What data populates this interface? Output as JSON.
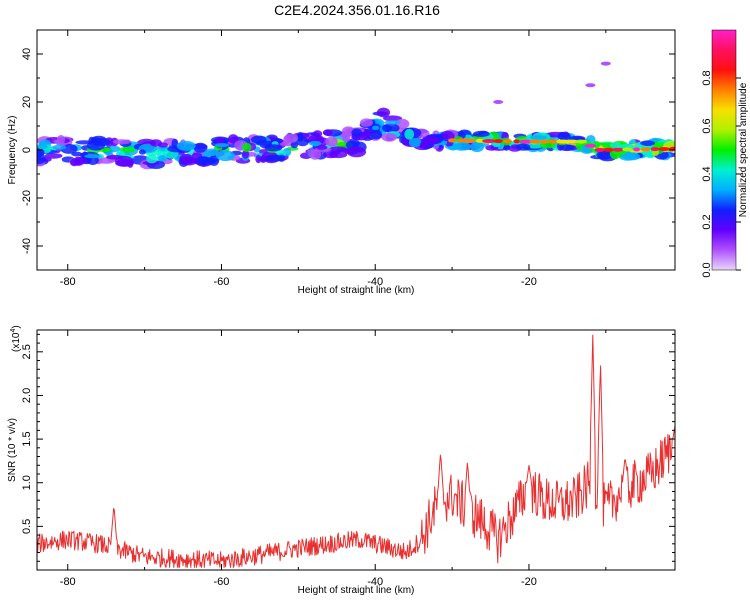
{
  "title": "C2E4.2024.356.01.16.R16",
  "chart_data": [
    {
      "type": "heatmap",
      "xlabel": "Height of straight line (km)",
      "ylabel": "Frequency (Hz)",
      "xlim": [
        -84,
        -1
      ],
      "ylim": [
        -50,
        50
      ],
      "x_ticks": [
        -80,
        -60,
        -40,
        -20
      ],
      "y_ticks": [
        -40,
        -20,
        0,
        20,
        40
      ],
      "colorbar": {
        "label": "Normalized spectral amplitude",
        "range": [
          0,
          1
        ],
        "ticks": [
          "0.0",
          "0.2",
          "0.4",
          "0.6",
          "0.8"
        ],
        "colors": [
          "#e8d8f8",
          "#b050ff",
          "#6000ff",
          "#1020ff",
          "#00b0ff",
          "#00f0d0",
          "#00f000",
          "#b0f000",
          "#f8e000",
          "#ff8000",
          "#ff1010",
          "#ff1060",
          "#ff20c8"
        ]
      },
      "ridge_center_hz": [
        {
          "x": -84,
          "y": -0.8
        },
        {
          "x": -75,
          "y": -0.3
        },
        {
          "x": -68,
          "y": -1.5
        },
        {
          "x": -60,
          "y": -0.5
        },
        {
          "x": -50,
          "y": 1.5
        },
        {
          "x": -42,
          "y": 3.5
        },
        {
          "x": -39.5,
          "y": 12
        },
        {
          "x": -36,
          "y": 5.5
        },
        {
          "x": -30,
          "y": 4
        },
        {
          "x": -20,
          "y": 3.5
        },
        {
          "x": -13,
          "y": 3.5
        },
        {
          "x": -11,
          "y": 0
        },
        {
          "x": -1,
          "y": 0.5
        }
      ]
    },
    {
      "type": "line",
      "xlabel": "Height of straight line (km)",
      "ylabel": "SNR (10 * v/v)",
      "scale_label": "(x10",
      "scale_exponent": "4",
      "xlim": [
        -84,
        -1
      ],
      "ylim": [
        0,
        2.75
      ],
      "x_ticks": [
        -80,
        -60,
        -40,
        -20
      ],
      "y_ticks": [
        "0.5",
        "1.0",
        "1.5",
        "2.0",
        "2.5"
      ],
      "line_color": "#e83030",
      "series_envelope": [
        {
          "x": -84,
          "y": 0.3
        },
        {
          "x": -80,
          "y": 0.35
        },
        {
          "x": -76,
          "y": 0.3
        },
        {
          "x": -74,
          "y": 0.25
        },
        {
          "x": -70,
          "y": 0.15
        },
        {
          "x": -60,
          "y": 0.1
        },
        {
          "x": -50,
          "y": 0.25
        },
        {
          "x": -42,
          "y": 0.35
        },
        {
          "x": -36,
          "y": 0.2
        },
        {
          "x": -34,
          "y": 0.35
        },
        {
          "x": -32,
          "y": 0.75
        },
        {
          "x": -30,
          "y": 0.85
        },
        {
          "x": -28,
          "y": 0.7
        },
        {
          "x": -26,
          "y": 0.55
        },
        {
          "x": -24,
          "y": 0.35
        },
        {
          "x": -22,
          "y": 0.65
        },
        {
          "x": -20,
          "y": 0.95
        },
        {
          "x": -18,
          "y": 0.8
        },
        {
          "x": -16,
          "y": 0.75
        },
        {
          "x": -14,
          "y": 0.8
        },
        {
          "x": -12,
          "y": 1.0
        },
        {
          "x": -10,
          "y": 0.7
        },
        {
          "x": -8,
          "y": 0.9
        },
        {
          "x": -4,
          "y": 1.1
        },
        {
          "x": -1,
          "y": 1.45
        }
      ],
      "peaks": [
        {
          "x": -74,
          "y": 0.75
        },
        {
          "x": -31.5,
          "y": 1.35
        },
        {
          "x": -28,
          "y": 1.25
        },
        {
          "x": -20,
          "y": 1.2
        },
        {
          "x": -11.7,
          "y": 2.7
        },
        {
          "x": -10.7,
          "y": 2.4
        },
        {
          "x": -7.5,
          "y": 1.3
        },
        {
          "x": -1,
          "y": 1.65
        }
      ]
    }
  ]
}
